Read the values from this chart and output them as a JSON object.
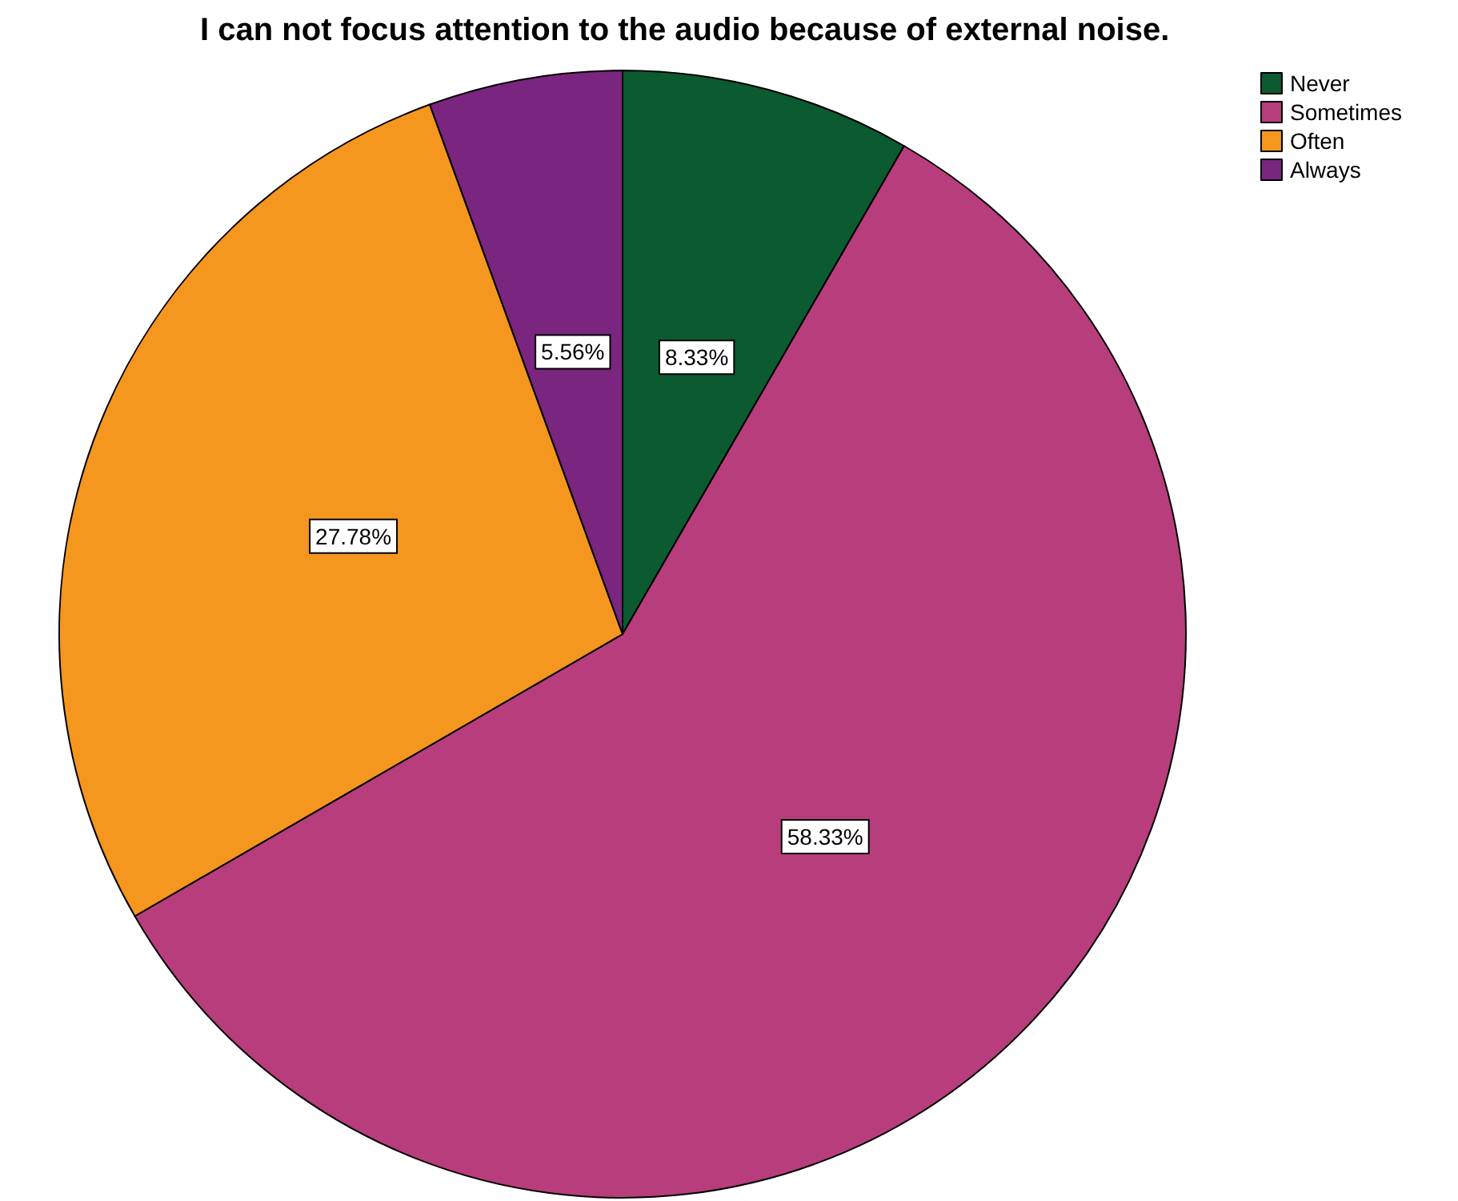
{
  "chart_data": {
    "type": "pie",
    "title": "I can not focus attention to the audio because of external noise.",
    "categories": [
      "Never",
      "Sometimes",
      "Often",
      "Always"
    ],
    "values": [
      8.33,
      58.33,
      27.78,
      5.56
    ],
    "colors": [
      "#0b5a30",
      "#b83d7c",
      "#f5961e",
      "#7a2580"
    ],
    "value_labels": [
      "8.33%",
      "58.33%",
      "27.78%",
      "5.56%"
    ],
    "legend": "top right"
  }
}
